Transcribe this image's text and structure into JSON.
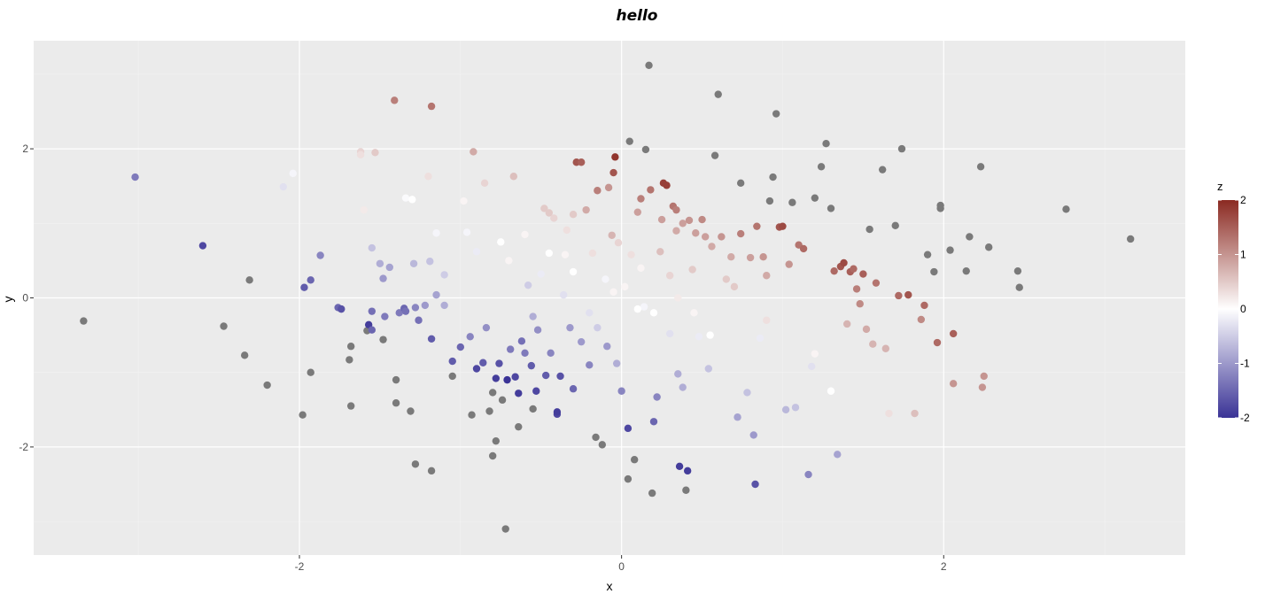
{
  "chart_data": {
    "type": "scatter",
    "title": "hello",
    "xlabel": "x",
    "ylabel": "y",
    "xlim": [
      -3.65,
      3.5
    ],
    "ylim": [
      -3.45,
      3.45
    ],
    "xticks": [
      -2,
      0,
      2
    ],
    "yticks": [
      -2,
      0,
      2
    ],
    "xtick_labels": [
      "-2",
      "0",
      "2"
    ],
    "ytick_labels": [
      "-2",
      "0",
      "2"
    ],
    "grid": true,
    "background": "#ebebeb",
    "legend": {
      "title": "z",
      "position": "right",
      "ticks": [
        2,
        1,
        0,
        -1,
        -2
      ],
      "labels": [
        "2",
        "1",
        "0",
        "-1",
        "-2"
      ],
      "range": [
        -2,
        2
      ],
      "colors": {
        "high": "#8b2a22",
        "mid": "#ffffff",
        "low": "#3a3396"
      },
      "na_color": "#7a7a7a"
    },
    "points": [
      {
        "x": -3.34,
        "y": -0.31,
        "z": null
      },
      {
        "x": -3.02,
        "y": 1.62,
        "z": -1.3
      },
      {
        "x": -2.6,
        "y": 0.7,
        "z": -1.8
      },
      {
        "x": -2.47,
        "y": -0.38,
        "z": null
      },
      {
        "x": -2.34,
        "y": -0.77,
        "z": null
      },
      {
        "x": -2.31,
        "y": 0.24,
        "z": null
      },
      {
        "x": -2.2,
        "y": -1.17,
        "z": null
      },
      {
        "x": -2.1,
        "y": 1.49,
        "z": -0.3
      },
      {
        "x": -2.04,
        "y": 1.67,
        "z": -0.1
      },
      {
        "x": -1.98,
        "y": -1.57,
        "z": null
      },
      {
        "x": -1.97,
        "y": 0.14,
        "z": -1.6
      },
      {
        "x": -1.93,
        "y": 0.24,
        "z": -1.5
      },
      {
        "x": -1.93,
        "y": -1.0,
        "z": null
      },
      {
        "x": -1.87,
        "y": 0.57,
        "z": -1.2
      },
      {
        "x": -1.76,
        "y": -0.13,
        "z": -1.5
      },
      {
        "x": -1.74,
        "y": -0.15,
        "z": -1.7
      },
      {
        "x": -1.69,
        "y": -0.83,
        "z": null
      },
      {
        "x": -1.68,
        "y": -0.65,
        "z": null
      },
      {
        "x": -1.68,
        "y": -1.45,
        "z": null
      },
      {
        "x": -1.58,
        "y": -0.44,
        "z": null
      },
      {
        "x": -1.57,
        "y": -0.36,
        "z": -1.9
      },
      {
        "x": -1.55,
        "y": -0.43,
        "z": -1.5
      },
      {
        "x": -1.55,
        "y": -0.18,
        "z": -1.4
      },
      {
        "x": -1.55,
        "y": 0.67,
        "z": -0.6
      },
      {
        "x": -1.62,
        "y": 1.96,
        "z": 0.4
      },
      {
        "x": -1.62,
        "y": 1.92,
        "z": 0.3
      },
      {
        "x": -1.6,
        "y": 1.18,
        "z": 0.2
      },
      {
        "x": -1.53,
        "y": 1.95,
        "z": 0.5
      },
      {
        "x": -1.5,
        "y": 0.46,
        "z": -0.8
      },
      {
        "x": -1.48,
        "y": -0.56,
        "z": null
      },
      {
        "x": -1.48,
        "y": 0.26,
        "z": -1.0
      },
      {
        "x": -1.47,
        "y": -0.25,
        "z": -1.3
      },
      {
        "x": -1.44,
        "y": 0.41,
        "z": -0.9
      },
      {
        "x": -1.41,
        "y": 2.65,
        "z": 1.2
      },
      {
        "x": -1.4,
        "y": -1.1,
        "z": null
      },
      {
        "x": -1.4,
        "y": -1.41,
        "z": null
      },
      {
        "x": -1.38,
        "y": -0.2,
        "z": -1.3
      },
      {
        "x": -1.35,
        "y": -0.14,
        "z": -1.5
      },
      {
        "x": -1.34,
        "y": 1.34,
        "z": -0.05
      },
      {
        "x": -1.34,
        "y": -0.18,
        "z": -1.4
      },
      {
        "x": -1.31,
        "y": -1.52,
        "z": null
      },
      {
        "x": -1.29,
        "y": 0.46,
        "z": -0.7
      },
      {
        "x": -1.28,
        "y": -0.13,
        "z": -1.2
      },
      {
        "x": -1.26,
        "y": -0.3,
        "z": -1.4
      },
      {
        "x": -1.28,
        "y": -2.23,
        "z": null
      },
      {
        "x": -1.22,
        "y": -0.1,
        "z": -1.0
      },
      {
        "x": -1.2,
        "y": 1.63,
        "z": 0.3
      },
      {
        "x": -1.19,
        "y": 0.49,
        "z": -0.6
      },
      {
        "x": -1.18,
        "y": -0.55,
        "z": -1.6
      },
      {
        "x": -1.18,
        "y": -2.32,
        "z": null
      },
      {
        "x": -1.18,
        "y": 2.57,
        "z": 1.3
      },
      {
        "x": -1.15,
        "y": 0.87,
        "z": -0.1
      },
      {
        "x": -1.15,
        "y": 0.04,
        "z": -0.9
      },
      {
        "x": -1.1,
        "y": -0.1,
        "z": -0.8
      },
      {
        "x": -1.1,
        "y": 0.31,
        "z": -0.5
      },
      {
        "x": -1.05,
        "y": -0.85,
        "z": -1.6
      },
      {
        "x": -1.05,
        "y": -1.05,
        "z": null
      },
      {
        "x": -1.0,
        "y": -0.66,
        "z": -1.5
      },
      {
        "x": -0.98,
        "y": 1.3,
        "z": 0.1
      },
      {
        "x": -0.96,
        "y": 0.88,
        "z": -0.1
      },
      {
        "x": -0.94,
        "y": -0.52,
        "z": -1.2
      },
      {
        "x": -0.93,
        "y": -1.57,
        "z": null
      },
      {
        "x": -0.92,
        "y": 1.96,
        "z": 0.8
      },
      {
        "x": -0.9,
        "y": -0.95,
        "z": -1.8
      },
      {
        "x": -0.85,
        "y": 1.54,
        "z": 0.4
      },
      {
        "x": -0.86,
        "y": -0.87,
        "z": -1.6
      },
      {
        "x": -0.84,
        "y": -0.4,
        "z": -1.1
      },
      {
        "x": -0.82,
        "y": -1.52,
        "z": null
      },
      {
        "x": -0.8,
        "y": -1.27,
        "z": null
      },
      {
        "x": -0.8,
        "y": -2.12,
        "z": null
      },
      {
        "x": -0.78,
        "y": -1.92,
        "z": null
      },
      {
        "x": -0.78,
        "y": -1.08,
        "z": -1.9
      },
      {
        "x": -0.76,
        "y": -0.88,
        "z": -1.7
      },
      {
        "x": -0.74,
        "y": -1.37,
        "z": null
      },
      {
        "x": -0.72,
        "y": -3.1,
        "z": null
      },
      {
        "x": -0.71,
        "y": -1.1,
        "z": -2.0
      },
      {
        "x": -0.69,
        "y": -0.69,
        "z": -1.3
      },
      {
        "x": -0.67,
        "y": 1.63,
        "z": 0.6
      },
      {
        "x": -0.66,
        "y": -1.06,
        "z": -1.8
      },
      {
        "x": -0.64,
        "y": -1.73,
        "z": null
      },
      {
        "x": -0.64,
        "y": -1.28,
        "z": -1.9
      },
      {
        "x": -0.62,
        "y": -0.58,
        "z": -1.4
      },
      {
        "x": -0.6,
        "y": -0.74,
        "z": -1.3
      },
      {
        "x": -0.58,
        "y": 0.17,
        "z": -0.5
      },
      {
        "x": -0.56,
        "y": -0.91,
        "z": -1.6
      },
      {
        "x": -0.55,
        "y": -1.49,
        "z": null
      },
      {
        "x": -0.53,
        "y": -1.25,
        "z": -1.8
      },
      {
        "x": -0.52,
        "y": -0.43,
        "z": -1.1
      },
      {
        "x": -0.5,
        "y": 0.32,
        "z": -0.2
      },
      {
        "x": -0.48,
        "y": 1.2,
        "z": 0.5
      },
      {
        "x": -0.47,
        "y": -1.04,
        "z": -1.6
      },
      {
        "x": -0.45,
        "y": 1.14,
        "z": 0.5
      },
      {
        "x": -0.44,
        "y": -0.74,
        "z": -1.2
      },
      {
        "x": -0.42,
        "y": 1.07,
        "z": 0.4
      },
      {
        "x": -0.4,
        "y": -1.56,
        "z": -1.8
      },
      {
        "x": -0.4,
        "y": -1.53,
        "z": -1.9
      },
      {
        "x": -0.38,
        "y": -1.05,
        "z": -1.7
      },
      {
        "x": -0.36,
        "y": 0.04,
        "z": -0.3
      },
      {
        "x": -0.35,
        "y": 0.58,
        "z": 0.1
      },
      {
        "x": -0.34,
        "y": 0.91,
        "z": 0.3
      },
      {
        "x": -0.32,
        "y": -0.4,
        "z": -1.0
      },
      {
        "x": -0.3,
        "y": -1.22,
        "z": -1.5
      },
      {
        "x": -0.3,
        "y": 1.12,
        "z": 0.5
      },
      {
        "x": -0.28,
        "y": 1.82,
        "z": 1.6
      },
      {
        "x": -0.25,
        "y": 1.82,
        "z": 1.5
      },
      {
        "x": -0.25,
        "y": -0.59,
        "z": -1.0
      },
      {
        "x": -0.22,
        "y": 1.18,
        "z": 0.8
      },
      {
        "x": -0.2,
        "y": -0.9,
        "z": -1.2
      },
      {
        "x": -0.18,
        "y": 0.6,
        "z": 0.3
      },
      {
        "x": -0.16,
        "y": -1.87,
        "z": null
      },
      {
        "x": -0.15,
        "y": 1.44,
        "z": 1.2
      },
      {
        "x": -0.12,
        "y": -1.97,
        "z": null
      },
      {
        "x": -0.1,
        "y": 0.25,
        "z": -0.1
      },
      {
        "x": -0.09,
        "y": -0.65,
        "z": -1.0
      },
      {
        "x": -0.08,
        "y": 1.48,
        "z": 1.0
      },
      {
        "x": -0.06,
        "y": 0.84,
        "z": 0.7
      },
      {
        "x": -0.05,
        "y": 1.68,
        "z": 1.6
      },
      {
        "x": -0.04,
        "y": 1.89,
        "z": 1.9
      },
      {
        "x": -0.03,
        "y": -0.88,
        "z": -0.8
      },
      {
        "x": -0.02,
        "y": 0.74,
        "z": 0.4
      },
      {
        "x": 0.0,
        "y": -1.25,
        "z": -1.2
      },
      {
        "x": 0.02,
        "y": 0.15,
        "z": 0.1
      },
      {
        "x": 0.04,
        "y": -1.75,
        "z": -1.8
      },
      {
        "x": 0.04,
        "y": -2.43,
        "z": null
      },
      {
        "x": 0.05,
        "y": 2.1,
        "z": null
      },
      {
        "x": 0.06,
        "y": 0.58,
        "z": 0.3
      },
      {
        "x": 0.08,
        "y": -2.17,
        "z": null
      },
      {
        "x": 0.1,
        "y": 1.15,
        "z": 0.9
      },
      {
        "x": 0.12,
        "y": 1.33,
        "z": 1.2
      },
      {
        "x": 0.12,
        "y": 0.4,
        "z": 0.1
      },
      {
        "x": 0.14,
        "y": -0.12,
        "z": -0.1
      },
      {
        "x": 0.15,
        "y": 1.99,
        "z": null
      },
      {
        "x": 0.17,
        "y": 3.12,
        "z": null
      },
      {
        "x": 0.18,
        "y": 1.45,
        "z": 1.3
      },
      {
        "x": 0.19,
        "y": -2.62,
        "z": null
      },
      {
        "x": 0.2,
        "y": -1.66,
        "z": -1.5
      },
      {
        "x": 0.22,
        "y": -1.33,
        "z": -1.2
      },
      {
        "x": 0.24,
        "y": 0.62,
        "z": 0.6
      },
      {
        "x": 0.25,
        "y": 1.05,
        "z": 0.9
      },
      {
        "x": 0.26,
        "y": 1.54,
        "z": 1.8
      },
      {
        "x": 0.28,
        "y": 1.51,
        "z": 1.8
      },
      {
        "x": 0.3,
        "y": -0.48,
        "z": -0.3
      },
      {
        "x": 0.3,
        "y": 0.3,
        "z": 0.4
      },
      {
        "x": 0.32,
        "y": 1.23,
        "z": 1.3
      },
      {
        "x": 0.34,
        "y": 1.18,
        "z": 1.2
      },
      {
        "x": 0.34,
        "y": 0.9,
        "z": 0.8
      },
      {
        "x": 0.35,
        "y": -1.02,
        "z": -0.8
      },
      {
        "x": 0.36,
        "y": -2.26,
        "z": -1.9
      },
      {
        "x": 0.38,
        "y": 1.0,
        "z": 0.9
      },
      {
        "x": 0.38,
        "y": -1.2,
        "z": -0.8
      },
      {
        "x": 0.4,
        "y": -2.58,
        "z": null
      },
      {
        "x": 0.41,
        "y": -2.32,
        "z": -1.9
      },
      {
        "x": 0.42,
        "y": 1.04,
        "z": 1.0
      },
      {
        "x": 0.44,
        "y": 0.38,
        "z": 0.5
      },
      {
        "x": 0.46,
        "y": 0.87,
        "z": 0.9
      },
      {
        "x": 0.48,
        "y": -0.52,
        "z": -0.2
      },
      {
        "x": 0.5,
        "y": 1.05,
        "z": 1.1
      },
      {
        "x": 0.52,
        "y": 0.82,
        "z": 0.9
      },
      {
        "x": 0.54,
        "y": -0.95,
        "z": -0.6
      },
      {
        "x": 0.56,
        "y": 0.69,
        "z": 0.8
      },
      {
        "x": 0.58,
        "y": 1.91,
        "z": null
      },
      {
        "x": 0.6,
        "y": 2.73,
        "z": null
      },
      {
        "x": 0.62,
        "y": 0.82,
        "z": 1.0
      },
      {
        "x": 0.65,
        "y": 0.25,
        "z": 0.5
      },
      {
        "x": 0.68,
        "y": 0.55,
        "z": 0.8
      },
      {
        "x": 0.72,
        "y": -1.6,
        "z": -0.9
      },
      {
        "x": 0.74,
        "y": 1.54,
        "z": null
      },
      {
        "x": 0.74,
        "y": 0.86,
        "z": 1.2
      },
      {
        "x": 0.78,
        "y": -1.27,
        "z": -0.6
      },
      {
        "x": 0.8,
        "y": 0.54,
        "z": 0.9
      },
      {
        "x": 0.82,
        "y": -1.84,
        "z": -1.0
      },
      {
        "x": 0.83,
        "y": -2.5,
        "z": -1.7
      },
      {
        "x": 0.84,
        "y": 0.96,
        "z": 1.3
      },
      {
        "x": 0.86,
        "y": -0.54,
        "z": -0.2
      },
      {
        "x": 0.88,
        "y": 0.55,
        "z": 1.0
      },
      {
        "x": 0.9,
        "y": 0.3,
        "z": 0.8
      },
      {
        "x": 0.92,
        "y": 1.3,
        "z": null
      },
      {
        "x": 0.94,
        "y": 1.62,
        "z": null
      },
      {
        "x": 0.96,
        "y": 2.47,
        "z": null
      },
      {
        "x": 0.98,
        "y": 0.95,
        "z": 1.6
      },
      {
        "x": 1.0,
        "y": 0.96,
        "z": 1.7
      },
      {
        "x": 1.02,
        "y": -1.5,
        "z": -0.7
      },
      {
        "x": 1.04,
        "y": 0.45,
        "z": 1.0
      },
      {
        "x": 1.06,
        "y": 1.28,
        "z": null
      },
      {
        "x": 1.08,
        "y": -1.47,
        "z": -0.6
      },
      {
        "x": 1.1,
        "y": 0.71,
        "z": 1.3
      },
      {
        "x": 1.13,
        "y": 0.66,
        "z": 1.4
      },
      {
        "x": 1.16,
        "y": -2.37,
        "z": -1.2
      },
      {
        "x": 1.18,
        "y": -0.92,
        "z": -0.3
      },
      {
        "x": 1.2,
        "y": 1.34,
        "z": null
      },
      {
        "x": 1.24,
        "y": 1.76,
        "z": null
      },
      {
        "x": 1.27,
        "y": 2.07,
        "z": null
      },
      {
        "x": 1.3,
        "y": 1.2,
        "z": null
      },
      {
        "x": 1.32,
        "y": 0.36,
        "z": 1.4
      },
      {
        "x": 1.34,
        "y": -2.1,
        "z": -0.9
      },
      {
        "x": 1.36,
        "y": 0.42,
        "z": 1.6
      },
      {
        "x": 1.38,
        "y": 0.47,
        "z": 1.7
      },
      {
        "x": 1.4,
        "y": -0.35,
        "z": 0.7
      },
      {
        "x": 1.42,
        "y": 0.35,
        "z": 1.5
      },
      {
        "x": 1.44,
        "y": 0.39,
        "z": 1.4
      },
      {
        "x": 1.46,
        "y": 0.12,
        "z": 1.2
      },
      {
        "x": 1.48,
        "y": -0.08,
        "z": 1.1
      },
      {
        "x": 1.5,
        "y": 0.32,
        "z": 1.5
      },
      {
        "x": 1.52,
        "y": -0.42,
        "z": 0.8
      },
      {
        "x": 1.54,
        "y": 0.92,
        "z": null
      },
      {
        "x": 1.56,
        "y": -0.62,
        "z": 0.7
      },
      {
        "x": 1.58,
        "y": 0.2,
        "z": 1.3
      },
      {
        "x": 1.62,
        "y": 1.72,
        "z": null
      },
      {
        "x": 1.64,
        "y": -0.68,
        "z": 0.7
      },
      {
        "x": 1.66,
        "y": -1.55,
        "z": 0.3
      },
      {
        "x": 1.7,
        "y": 0.97,
        "z": null
      },
      {
        "x": 1.72,
        "y": 0.03,
        "z": 1.4
      },
      {
        "x": 1.74,
        "y": 2.0,
        "z": null
      },
      {
        "x": 1.78,
        "y": 0.04,
        "z": 1.6
      },
      {
        "x": 1.82,
        "y": -1.55,
        "z": 0.6
      },
      {
        "x": 1.86,
        "y": -0.29,
        "z": 1.1
      },
      {
        "x": 1.88,
        "y": -0.1,
        "z": 1.4
      },
      {
        "x": 1.9,
        "y": 0.58,
        "z": null
      },
      {
        "x": 1.94,
        "y": 0.35,
        "z": null
      },
      {
        "x": 1.96,
        "y": -0.6,
        "z": 1.4
      },
      {
        "x": 1.98,
        "y": 1.2,
        "z": null
      },
      {
        "x": 1.98,
        "y": 1.24,
        "z": null
      },
      {
        "x": 2.04,
        "y": 0.64,
        "z": null
      },
      {
        "x": 2.06,
        "y": -0.48,
        "z": 1.5
      },
      {
        "x": 2.06,
        "y": -1.15,
        "z": 1.0
      },
      {
        "x": 2.14,
        "y": 0.36,
        "z": null
      },
      {
        "x": 2.16,
        "y": 0.82,
        "z": null
      },
      {
        "x": 2.23,
        "y": 1.76,
        "z": null
      },
      {
        "x": 2.24,
        "y": -1.2,
        "z": 1.0
      },
      {
        "x": 2.25,
        "y": -1.05,
        "z": 1.0
      },
      {
        "x": 2.28,
        "y": 0.68,
        "z": null
      },
      {
        "x": 2.46,
        "y": 0.36,
        "z": null
      },
      {
        "x": 2.47,
        "y": 0.14,
        "z": null
      },
      {
        "x": 2.76,
        "y": 1.19,
        "z": null
      },
      {
        "x": 3.16,
        "y": 0.79,
        "z": null
      },
      {
        "x": -0.45,
        "y": 0.6,
        "z": 0.0
      },
      {
        "x": -0.3,
        "y": 0.35,
        "z": 0.0
      },
      {
        "x": -0.2,
        "y": -0.2,
        "z": -0.3
      },
      {
        "x": 0.1,
        "y": -0.15,
        "z": 0.0
      },
      {
        "x": 0.2,
        "y": -0.2,
        "z": 0.0
      },
      {
        "x": 0.55,
        "y": -0.5,
        "z": 0.0
      },
      {
        "x": -0.75,
        "y": 0.75,
        "z": 0.0
      },
      {
        "x": -0.6,
        "y": 0.85,
        "z": 0.1
      },
      {
        "x": -1.3,
        "y": 1.32,
        "z": 0.0
      },
      {
        "x": 0.35,
        "y": 0.0,
        "z": 0.2
      },
      {
        "x": 0.7,
        "y": 0.15,
        "z": 0.5
      },
      {
        "x": 0.9,
        "y": -0.3,
        "z": 0.3
      },
      {
        "x": 1.2,
        "y": -0.75,
        "z": 0.1
      },
      {
        "x": 1.3,
        "y": -1.25,
        "z": 0.0
      },
      {
        "x": -0.05,
        "y": 0.08,
        "z": 0.1
      },
      {
        "x": -0.7,
        "y": 0.5,
        "z": 0.1
      },
      {
        "x": -0.9,
        "y": 0.62,
        "z": -0.2
      },
      {
        "x": -0.55,
        "y": -0.25,
        "z": -0.8
      },
      {
        "x": -0.15,
        "y": -0.4,
        "z": -0.5
      },
      {
        "x": 0.45,
        "y": -0.2,
        "z": 0.1
      }
    ]
  }
}
